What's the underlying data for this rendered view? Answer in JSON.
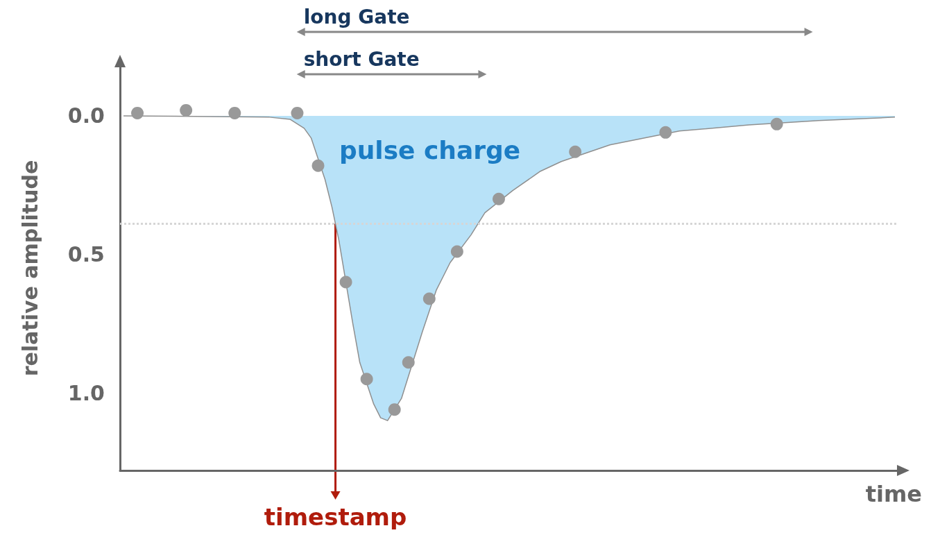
{
  "chart_data": {
    "type": "area",
    "xlabel": "time",
    "ylabel": "relative amplitude",
    "categories": [
      null,
      null,
      null,
      null,
      null,
      null,
      null,
      null,
      null,
      null,
      null,
      null,
      null,
      null,
      null,
      null,
      null,
      null,
      null,
      null,
      null,
      null,
      null,
      null,
      null,
      null,
      null,
      null,
      null,
      null,
      null,
      null,
      null,
      null,
      null,
      null,
      null,
      null,
      null,
      null,
      null,
      null,
      null,
      null,
      null,
      null,
      null,
      null,
      null,
      null,
      null,
      null,
      null,
      null,
      null,
      null,
      null,
      null,
      null,
      null,
      null,
      null,
      null,
      null,
      null,
      null,
      null,
      null,
      null,
      null,
      null,
      null,
      null,
      null,
      null,
      null,
      null,
      null,
      null,
      null,
      null,
      null,
      null,
      null,
      null,
      null,
      null,
      null,
      null,
      null,
      null,
      null,
      null,
      null,
      null,
      null,
      null,
      null,
      null,
      null,
      null,
      null,
      null,
      null,
      null,
      null,
      null,
      null,
      null,
      null,
      null,
      null
    ],
    "ylim": [
      1.28,
      -0.18
    ],
    "yticks": [
      {
        "value": 0,
        "label": "0.0"
      },
      {
        "value": 0.5,
        "label": "0.5"
      },
      {
        "value": 1,
        "label": "1.0"
      }
    ],
    "tick_labels": "y",
    "grid": false,
    "series": [
      {
        "color": "#b8e2f8",
        "values": [
          0,
          null,
          null,
          null,
          null,
          null,
          null,
          null,
          null,
          null,
          null,
          null,
          null,
          null,
          null,
          null,
          null,
          null,
          null,
          null,
          null,
          0.005,
          null,
          null,
          0.013,
          null,
          0.045,
          0.08,
          null,
          0.23,
          0.33,
          0.45,
          null,
          0.75,
          0.89,
          null,
          1.04,
          1.09,
          1.1,
          null,
          1.02,
          null,
          0.86,
          0.78,
          null,
          0.63,
          0.58,
          0.53,
          null,
          null,
          0.43,
          null,
          0.35,
          null,
          null,
          null,
          0.27,
          null,
          null,
          null,
          0.2,
          null,
          null,
          0.165,
          null,
          null,
          null,
          null,
          null,
          null,
          0.105,
          null,
          null,
          null,
          null,
          null,
          null,
          null,
          null,
          null,
          0.055,
          null,
          null,
          null,
          null,
          null,
          null,
          null,
          null,
          null,
          0.033,
          null,
          null,
          null,
          null,
          null,
          null,
          null,
          null,
          null,
          0.017,
          null,
          null,
          null,
          null,
          null,
          null,
          null,
          null,
          null,
          null,
          0.005
        ]
      },
      {
        "type": "scatter",
        "marker": "circle",
        "color": "#999999",
        "values": [
          null,
          null,
          -0.01,
          null,
          null,
          null,
          null,
          null,
          null,
          -0.02,
          null,
          null,
          null,
          null,
          null,
          null,
          -0.01,
          null,
          null,
          null,
          null,
          null,
          null,
          null,
          null,
          -0.01,
          null,
          null,
          0.18,
          null,
          null,
          null,
          0.6,
          null,
          null,
          0.95,
          null,
          null,
          null,
          1.06,
          null,
          0.89,
          null,
          null,
          0.66,
          null,
          null,
          null,
          0.49,
          null,
          null,
          null,
          null,
          null,
          0.3,
          null,
          null,
          null,
          null,
          null,
          null,
          null,
          null,
          null,
          null,
          0.13,
          null,
          null,
          null,
          null,
          null,
          null,
          null,
          null,
          null,
          null,
          null,
          null,
          0.06,
          null,
          null,
          null,
          null,
          null,
          null,
          null,
          null,
          null,
          null,
          null,
          null,
          null,
          null,
          null,
          0.03,
          null,
          null,
          null,
          null,
          null,
          null,
          null,
          null,
          null,
          null,
          null,
          null,
          null,
          null,
          null,
          null,
          null
        ]
      }
    ],
    "ref_lines": [
      {
        "axis": "y",
        "value": 0.39,
        "color": "#d6d6d6",
        "line_style": "dotted"
      }
    ],
    "annotations": [
      "long Gate",
      "short Gate",
      "pulse charge",
      {
        "text": "timestamp",
        "y": 0.39
      }
    ]
  }
}
